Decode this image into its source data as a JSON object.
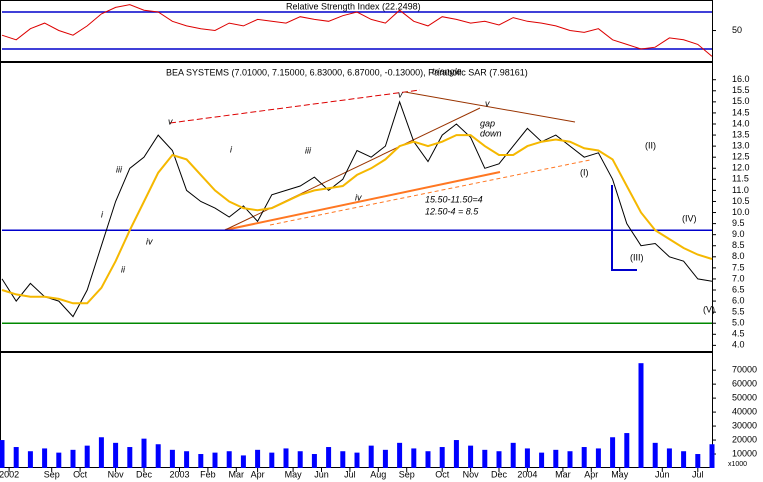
{
  "chart_data": [
    {
      "type": "line",
      "title": "Relative Strength Index (22.2498)",
      "x": [
        0,
        2,
        4,
        6,
        8,
        10,
        12,
        14,
        16,
        18,
        20,
        22,
        24,
        26,
        28,
        30,
        32,
        34,
        36,
        38,
        40,
        42,
        44,
        46,
        48,
        50,
        52,
        54,
        56,
        58,
        60,
        62,
        64,
        66,
        68,
        70,
        72,
        74,
        76,
        78,
        80,
        82,
        84,
        86,
        88,
        90,
        92,
        94,
        96,
        98,
        100
      ],
      "xlim": [
        0,
        100
      ],
      "ylim": [
        16,
        83
      ],
      "yticks": [
        50
      ],
      "hlines": [
        {
          "value": 70,
          "color": "#0000cc"
        },
        {
          "value": 30,
          "color": "#0000cc"
        }
      ],
      "series": [
        {
          "color": "#dd0000",
          "values": [
            45,
            40,
            52,
            58,
            50,
            45,
            55,
            68,
            75,
            78,
            72,
            70,
            60,
            55,
            52,
            50,
            58,
            55,
            62,
            60,
            58,
            65,
            62,
            60,
            66,
            70,
            62,
            58,
            72,
            60,
            55,
            65,
            62,
            58,
            60,
            56,
            64,
            60,
            58,
            55,
            50,
            48,
            52,
            40,
            35,
            30,
            32,
            42,
            40,
            35,
            22
          ]
        }
      ]
    },
    {
      "type": "line",
      "title": "BEA SYSTEMS (7.01000, 7.15000, 6.83000, 6.87000, -0.13000), Parabolic SAR (7.98161)",
      "x": [
        0,
        2,
        4,
        6,
        8,
        10,
        12,
        14,
        16,
        18,
        20,
        22,
        24,
        26,
        28,
        30,
        32,
        34,
        36,
        38,
        40,
        42,
        44,
        46,
        48,
        50,
        52,
        54,
        56,
        58,
        60,
        62,
        64,
        66,
        68,
        70,
        72,
        74,
        76,
        78,
        80,
        82,
        84,
        86,
        88,
        90,
        92,
        94,
        96,
        98,
        100
      ],
      "xlim": [
        0,
        100
      ],
      "ylim": [
        3.7,
        16.8
      ],
      "yticks": [
        {
          "value": 4,
          "label": "4.0"
        },
        {
          "value": 4.5,
          "label": "4.5"
        },
        {
          "value": 5,
          "label": "5.0"
        },
        {
          "value": 5.5,
          "label": "5.5"
        },
        {
          "value": 6,
          "label": "6.0"
        },
        {
          "value": 6.5,
          "label": "6.5"
        },
        {
          "value": 7,
          "label": "7.0"
        },
        {
          "value": 7.5,
          "label": "7.5"
        },
        {
          "value": 8,
          "label": "8.0"
        },
        {
          "value": 8.5,
          "label": "8.5"
        },
        {
          "value": 9,
          "label": "9.0"
        },
        {
          "value": 9.5,
          "label": "9.5"
        },
        {
          "value": 10,
          "label": "10.0"
        },
        {
          "value": 10.5,
          "label": "10.5"
        },
        {
          "value": 11,
          "label": "11.0"
        },
        {
          "value": 11.5,
          "label": "11.5"
        },
        {
          "value": 12,
          "label": "12.0"
        },
        {
          "value": 12.5,
          "label": "12.5"
        },
        {
          "value": 13,
          "label": "13.0"
        },
        {
          "value": 13.5,
          "label": "13.5"
        },
        {
          "value": 14,
          "label": "14.0"
        },
        {
          "value": 14.5,
          "label": "14.5"
        },
        {
          "value": 15,
          "label": "15.0"
        },
        {
          "value": 15.5,
          "label": "15.5"
        },
        {
          "value": 16,
          "label": "16.0"
        }
      ],
      "hlines": [
        {
          "value": 9.2,
          "color": "#0000cc"
        },
        {
          "value": 5.0,
          "color": "#008800"
        }
      ],
      "series": [
        {
          "color": "#000000",
          "values": [
            7.0,
            6.0,
            6.8,
            6.2,
            6.0,
            5.3,
            6.5,
            8.5,
            10.5,
            12.0,
            12.5,
            13.5,
            12.8,
            11.0,
            10.5,
            10.2,
            9.8,
            10.3,
            9.6,
            10.8,
            11.0,
            11.2,
            11.6,
            11.0,
            11.5,
            12.8,
            12.5,
            13.0,
            15.0,
            13.2,
            12.3,
            13.5,
            14.0,
            13.4,
            12.0,
            12.2,
            13.0,
            13.8,
            13.2,
            13.5,
            13.0,
            12.5,
            12.7,
            11.5,
            9.5,
            8.5,
            8.6,
            8.0,
            7.8,
            7.0,
            6.9
          ]
        },
        {
          "color": "#f5b800",
          "values": [
            6.5,
            6.3,
            6.2,
            6.2,
            6.1,
            5.9,
            5.9,
            6.6,
            7.8,
            9.2,
            10.5,
            11.8,
            12.6,
            12.4,
            11.7,
            11.0,
            10.5,
            10.2,
            10.1,
            10.2,
            10.5,
            10.8,
            11.0,
            11.1,
            11.2,
            11.7,
            12.0,
            12.4,
            13.0,
            13.2,
            13.0,
            13.2,
            13.5,
            13.5,
            13.0,
            12.6,
            12.6,
            13.0,
            13.2,
            13.3,
            13.2,
            12.9,
            12.8,
            12.4,
            11.2,
            10.0,
            9.2,
            8.8,
            8.4,
            8.1,
            7.9
          ]
        }
      ],
      "annotations": [
        {
          "text": "v",
          "color": "#800080"
        },
        {
          "text": "iii",
          "color": "#800080"
        },
        {
          "text": "i",
          "color": "#800080"
        },
        {
          "text": "ii",
          "color": "#800080"
        },
        {
          "text": "iv",
          "color": "#800080"
        },
        {
          "text": "i",
          "color": "#800080"
        },
        {
          "text": "iii",
          "color": "#800080"
        },
        {
          "text": "iv",
          "color": "#800080"
        },
        {
          "text": "v",
          "color": "#800080"
        },
        {
          "text": "v",
          "color": "#800080"
        },
        {
          "text": "(I)",
          "color": "#cc0000"
        },
        {
          "text": "(II)",
          "color": "#cc0000"
        },
        {
          "text": "(III)",
          "color": "#cc0000"
        },
        {
          "text": "(IV)",
          "color": "#cc0000"
        },
        {
          "text": "(V)",
          "color": "#cc0000"
        },
        {
          "text": "triangle",
          "color": "#800080"
        },
        {
          "text": "gap",
          "color": "#cc00cc"
        },
        {
          "text": "down",
          "color": "#cc00cc"
        },
        {
          "text": "15.50-11.50=4",
          "color": "#008800"
        },
        {
          "text": "12.50-4 = 8.5",
          "color": "#008800"
        }
      ]
    },
    {
      "type": "bar",
      "note": "x1000",
      "x": [
        0,
        2,
        4,
        6,
        8,
        10,
        12,
        14,
        16,
        18,
        20,
        22,
        24,
        26,
        28,
        30,
        32,
        34,
        36,
        38,
        40,
        42,
        44,
        46,
        48,
        50,
        52,
        54,
        56,
        58,
        60,
        62,
        64,
        66,
        68,
        70,
        72,
        74,
        76,
        78,
        80,
        82,
        84,
        86,
        88,
        90,
        92,
        94,
        96,
        98,
        100
      ],
      "xlim": [
        0,
        100
      ],
      "ylim": [
        0,
        83000
      ],
      "yticks": [
        10000,
        20000,
        30000,
        40000,
        50000,
        60000,
        70000
      ],
      "xticks": [
        {
          "value": 1,
          "label": "2002"
        },
        {
          "value": 7,
          "label": "Sep"
        },
        {
          "value": 11,
          "label": "Oct"
        },
        {
          "value": 16,
          "label": "Nov"
        },
        {
          "value": 20,
          "label": "Dec"
        },
        {
          "value": 25,
          "label": "2003"
        },
        {
          "value": 29,
          "label": "Feb"
        },
        {
          "value": 33,
          "label": "Mar"
        },
        {
          "value": 36,
          "label": "Apr"
        },
        {
          "value": 41,
          "label": "May"
        },
        {
          "value": 45,
          "label": "Jun"
        },
        {
          "value": 49,
          "label": "Jul"
        },
        {
          "value": 53,
          "label": "Aug"
        },
        {
          "value": 57,
          "label": "Sep"
        },
        {
          "value": 62,
          "label": "Oct"
        },
        {
          "value": 66,
          "label": "Nov"
        },
        {
          "value": 70,
          "label": "Dec"
        },
        {
          "value": 74,
          "label": "2004"
        },
        {
          "value": 79,
          "label": "Mar"
        },
        {
          "value": 83,
          "label": "Apr"
        },
        {
          "value": 87,
          "label": "May"
        },
        {
          "value": 93,
          "label": "Jun"
        },
        {
          "value": 98,
          "label": "Jul"
        }
      ],
      "series": [
        {
          "color": "#0000ff",
          "values": [
            20000,
            15000,
            12000,
            14000,
            11000,
            13000,
            16000,
            22000,
            18000,
            15000,
            21000,
            17000,
            13000,
            12000,
            10000,
            11000,
            12000,
            9000,
            13000,
            11000,
            14000,
            12000,
            10000,
            15000,
            12000,
            11000,
            16000,
            13000,
            18000,
            14000,
            12000,
            15000,
            20000,
            16000,
            13000,
            12000,
            18000,
            14000,
            11000,
            13000,
            12000,
            15000,
            14000,
            22000,
            25000,
            75000,
            18000,
            14000,
            12000,
            10000,
            17000
          ]
        }
      ]
    }
  ]
}
